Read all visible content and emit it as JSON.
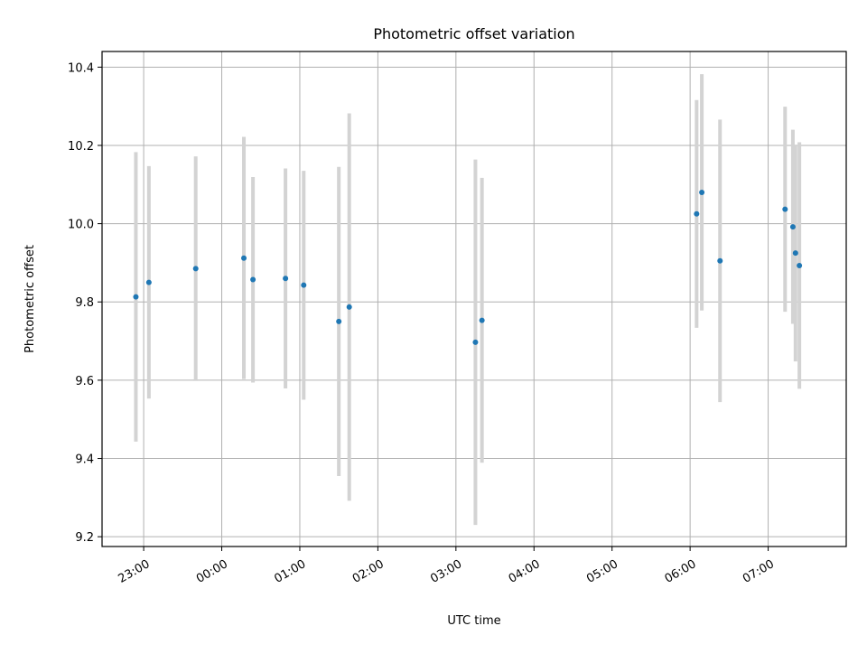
{
  "chart_data": {
    "type": "scatter",
    "title": "Photometric offset variation",
    "xlabel": "UTC time",
    "ylabel": "Photometric offset",
    "xlim": [
      "22:28",
      "08:00"
    ],
    "ylim": [
      9.175,
      10.44
    ],
    "xticks": [
      "23:00",
      "00:00",
      "01:00",
      "02:00",
      "03:00",
      "04:00",
      "05:00",
      "06:00",
      "07:00"
    ],
    "yticks": [
      9.2,
      9.4,
      9.6,
      9.8,
      10.0,
      10.2,
      10.4
    ],
    "ytick_labels": [
      "9.2",
      "9.4",
      "9.6",
      "9.8",
      "10.0",
      "10.2",
      "10.4"
    ],
    "grid": true,
    "marker_color": "#1f77b4",
    "errorbar_color": "#d3d3d3",
    "points": [
      {
        "x": "22:54",
        "y": 9.813,
        "ymin": 9.443,
        "ymax": 10.183
      },
      {
        "x": "23:04",
        "y": 9.85,
        "ymin": 9.553,
        "ymax": 10.147
      },
      {
        "x": "23:40",
        "y": 9.885,
        "ymin": 9.598,
        "ymax": 10.172
      },
      {
        "x": "00:17",
        "y": 9.912,
        "ymin": 9.603,
        "ymax": 10.222
      },
      {
        "x": "00:24",
        "y": 9.857,
        "ymin": 9.594,
        "ymax": 10.119
      },
      {
        "x": "00:49",
        "y": 9.86,
        "ymin": 9.579,
        "ymax": 10.141
      },
      {
        "x": "01:03",
        "y": 9.843,
        "ymin": 9.55,
        "ymax": 10.135
      },
      {
        "x": "01:30",
        "y": 9.75,
        "ymin": 9.355,
        "ymax": 10.145
      },
      {
        "x": "01:38",
        "y": 9.787,
        "ymin": 9.292,
        "ymax": 10.282
      },
      {
        "x": "03:15",
        "y": 9.697,
        "ymin": 9.23,
        "ymax": 10.164
      },
      {
        "x": "03:20",
        "y": 9.753,
        "ymin": 9.389,
        "ymax": 10.117
      },
      {
        "x": "06:05",
        "y": 10.025,
        "ymin": 9.734,
        "ymax": 10.316
      },
      {
        "x": "06:09",
        "y": 10.08,
        "ymin": 9.778,
        "ymax": 10.382
      },
      {
        "x": "06:23",
        "y": 9.905,
        "ymin": 9.544,
        "ymax": 10.266
      },
      {
        "x": "07:13",
        "y": 10.037,
        "ymin": 9.775,
        "ymax": 10.299
      },
      {
        "x": "07:19",
        "y": 9.992,
        "ymin": 9.744,
        "ymax": 10.24
      },
      {
        "x": "07:21",
        "y": 9.925,
        "ymin": 9.648,
        "ymax": 10.202
      },
      {
        "x": "07:24",
        "y": 9.893,
        "ymin": 9.578,
        "ymax": 10.208
      }
    ]
  }
}
